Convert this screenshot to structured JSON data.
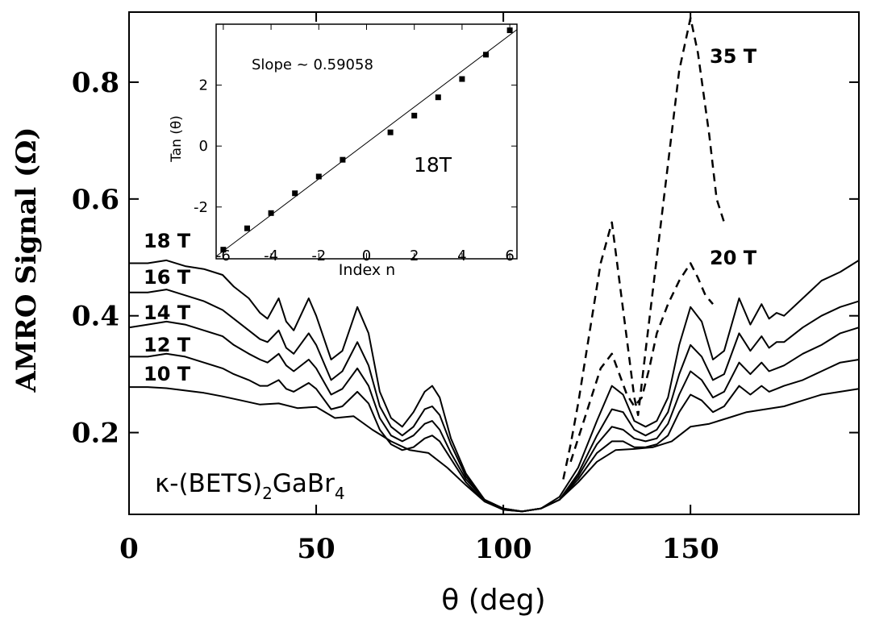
{
  "chart_data": {
    "main": {
      "type": "line",
      "xlabel": "θ (deg)",
      "ylabel": "AMRO Signal (Ω)",
      "xlim": [
        0,
        195
      ],
      "ylim": [
        0.06,
        0.92
      ],
      "xticks": [
        0,
        50,
        100,
        150
      ],
      "xtick_labels": [
        "0",
        "50",
        "100",
        "150"
      ],
      "yticks": [
        0.2,
        0.4,
        0.6,
        0.8
      ],
      "ytick_labels": [
        "0.2",
        "0.4",
        "0.6",
        "0.8"
      ],
      "compound": {
        "prefix": "κ-(BETS)",
        "sub1": "2",
        "mid": "GaBr",
        "sub2": "4"
      },
      "series": [
        {
          "name": "18 T",
          "style": "solid",
          "x": [
            0,
            5,
            10,
            15,
            20,
            25,
            28,
            32,
            35,
            37,
            40,
            42,
            44,
            48,
            50,
            54,
            57,
            61,
            64,
            67,
            70,
            73,
            76,
            79,
            81,
            83,
            86,
            90,
            95,
            100,
            105,
            110,
            115,
            120,
            125,
            129,
            132,
            135,
            138,
            141,
            144,
            147,
            150,
            153,
            156,
            159,
            163,
            166,
            169,
            171,
            173,
            175,
            180,
            185,
            190,
            195
          ],
          "y": [
            0.49,
            0.49,
            0.495,
            0.485,
            0.48,
            0.47,
            0.45,
            0.43,
            0.405,
            0.395,
            0.43,
            0.39,
            0.375,
            0.43,
            0.4,
            0.325,
            0.34,
            0.415,
            0.37,
            0.27,
            0.225,
            0.21,
            0.235,
            0.27,
            0.28,
            0.26,
            0.19,
            0.13,
            0.085,
            0.07,
            0.065,
            0.07,
            0.09,
            0.14,
            0.22,
            0.28,
            0.265,
            0.22,
            0.21,
            0.22,
            0.26,
            0.35,
            0.415,
            0.39,
            0.325,
            0.34,
            0.43,
            0.385,
            0.42,
            0.395,
            0.405,
            0.4,
            0.43,
            0.46,
            0.475,
            0.495
          ]
        },
        {
          "name": "16 T",
          "style": "solid",
          "x": [
            0,
            5,
            10,
            15,
            20,
            25,
            28,
            32,
            35,
            37,
            40,
            42,
            44,
            48,
            50,
            54,
            57,
            61,
            64,
            67,
            70,
            73,
            76,
            79,
            81,
            83,
            86,
            90,
            95,
            100,
            105,
            110,
            115,
            120,
            125,
            129,
            132,
            135,
            138,
            141,
            144,
            147,
            150,
            153,
            156,
            159,
            163,
            166,
            169,
            171,
            173,
            175,
            180,
            185,
            190,
            195
          ],
          "y": [
            0.44,
            0.44,
            0.445,
            0.435,
            0.425,
            0.41,
            0.395,
            0.375,
            0.36,
            0.355,
            0.375,
            0.345,
            0.335,
            0.37,
            0.35,
            0.29,
            0.305,
            0.355,
            0.315,
            0.245,
            0.21,
            0.195,
            0.21,
            0.24,
            0.245,
            0.23,
            0.18,
            0.125,
            0.085,
            0.07,
            0.065,
            0.07,
            0.085,
            0.13,
            0.195,
            0.24,
            0.235,
            0.205,
            0.195,
            0.205,
            0.235,
            0.3,
            0.35,
            0.33,
            0.29,
            0.3,
            0.37,
            0.34,
            0.365,
            0.345,
            0.355,
            0.355,
            0.38,
            0.4,
            0.415,
            0.425
          ]
        },
        {
          "name": "14 T",
          "style": "solid",
          "x": [
            0,
            5,
            10,
            15,
            20,
            25,
            28,
            32,
            35,
            37,
            40,
            42,
            44,
            48,
            50,
            54,
            57,
            61,
            64,
            67,
            70,
            73,
            76,
            79,
            81,
            83,
            86,
            90,
            95,
            100,
            105,
            110,
            115,
            120,
            125,
            129,
            132,
            135,
            138,
            141,
            144,
            147,
            150,
            153,
            156,
            159,
            163,
            166,
            169,
            171,
            173,
            175,
            180,
            185,
            190,
            195
          ],
          "y": [
            0.38,
            0.385,
            0.39,
            0.385,
            0.375,
            0.365,
            0.35,
            0.335,
            0.325,
            0.32,
            0.335,
            0.315,
            0.305,
            0.325,
            0.31,
            0.265,
            0.275,
            0.31,
            0.28,
            0.225,
            0.195,
            0.185,
            0.195,
            0.215,
            0.22,
            0.205,
            0.165,
            0.12,
            0.085,
            0.07,
            0.065,
            0.07,
            0.085,
            0.125,
            0.18,
            0.21,
            0.205,
            0.19,
            0.185,
            0.19,
            0.215,
            0.265,
            0.305,
            0.29,
            0.26,
            0.27,
            0.32,
            0.3,
            0.32,
            0.305,
            0.31,
            0.315,
            0.335,
            0.35,
            0.37,
            0.38
          ]
        },
        {
          "name": "12 T",
          "style": "solid",
          "x": [
            0,
            5,
            10,
            15,
            20,
            25,
            28,
            32,
            35,
            37,
            40,
            42,
            44,
            48,
            50,
            54,
            57,
            61,
            64,
            67,
            70,
            73,
            76,
            79,
            81,
            83,
            86,
            90,
            95,
            100,
            105,
            110,
            115,
            120,
            125,
            129,
            132,
            135,
            138,
            141,
            144,
            147,
            150,
            153,
            156,
            159,
            163,
            166,
            169,
            171,
            173,
            175,
            180,
            185,
            190,
            195
          ],
          "y": [
            0.33,
            0.33,
            0.335,
            0.33,
            0.32,
            0.31,
            0.3,
            0.29,
            0.28,
            0.28,
            0.29,
            0.275,
            0.27,
            0.285,
            0.275,
            0.24,
            0.245,
            0.27,
            0.25,
            0.205,
            0.18,
            0.17,
            0.175,
            0.19,
            0.195,
            0.185,
            0.155,
            0.115,
            0.082,
            0.068,
            0.065,
            0.07,
            0.085,
            0.12,
            0.165,
            0.185,
            0.185,
            0.175,
            0.175,
            0.18,
            0.195,
            0.235,
            0.265,
            0.255,
            0.235,
            0.245,
            0.28,
            0.265,
            0.28,
            0.27,
            0.275,
            0.28,
            0.29,
            0.305,
            0.32,
            0.325
          ]
        },
        {
          "name": "10 T",
          "style": "solid",
          "x": [
            0,
            5,
            10,
            15,
            20,
            25,
            30,
            35,
            40,
            45,
            50,
            55,
            60,
            65,
            70,
            75,
            80,
            85,
            90,
            95,
            100,
            105,
            110,
            115,
            120,
            125,
            130,
            135,
            140,
            145,
            150,
            155,
            160,
            165,
            170,
            175,
            180,
            185,
            190,
            195
          ],
          "y": [
            0.278,
            0.278,
            0.276,
            0.272,
            0.268,
            0.262,
            0.255,
            0.248,
            0.25,
            0.242,
            0.244,
            0.225,
            0.228,
            0.205,
            0.185,
            0.17,
            0.165,
            0.14,
            0.11,
            0.082,
            0.068,
            0.065,
            0.07,
            0.085,
            0.115,
            0.15,
            0.17,
            0.172,
            0.175,
            0.185,
            0.21,
            0.215,
            0.225,
            0.235,
            0.24,
            0.245,
            0.255,
            0.265,
            0.27,
            0.275
          ]
        },
        {
          "name": "35 T",
          "style": "dashed",
          "x": [
            116,
            118,
            120,
            122,
            124,
            126,
            129,
            131,
            133,
            135,
            136,
            138,
            141,
            144,
            147,
            150,
            152,
            155,
            157,
            159
          ],
          "y": [
            0.12,
            0.18,
            0.25,
            0.33,
            0.41,
            0.49,
            0.56,
            0.46,
            0.36,
            0.26,
            0.23,
            0.34,
            0.5,
            0.66,
            0.82,
            0.91,
            0.85,
            0.71,
            0.6,
            0.56
          ]
        },
        {
          "name": "20 T",
          "style": "dashed",
          "x": [
            118,
            121,
            124,
            126,
            129,
            131,
            133,
            135,
            137,
            139,
            141,
            144,
            147,
            150,
            152,
            154,
            156
          ],
          "y": [
            0.15,
            0.21,
            0.27,
            0.31,
            0.335,
            0.3,
            0.265,
            0.245,
            0.26,
            0.31,
            0.37,
            0.42,
            0.46,
            0.49,
            0.465,
            0.435,
            0.42
          ]
        }
      ],
      "annotations": [
        "35 T",
        "20 T"
      ]
    },
    "inset": {
      "type": "scatter",
      "xlabel": "Index n",
      "ylabel": "Tan (θ)",
      "xlim": [
        -6.3,
        6.3
      ],
      "ylim": [
        -3.7,
        4.0
      ],
      "xticks": [
        -6,
        -4,
        -2,
        0,
        2,
        4,
        6
      ],
      "xtick_labels": [
        "-6",
        "-4",
        "-2",
        "0",
        "2",
        "4",
        "6"
      ],
      "yticks": [
        -2,
        0,
        2
      ],
      "ytick_labels": [
        "-2",
        "0",
        "2"
      ],
      "slope_text": "Slope ~ 0.59058",
      "field_label": "18T",
      "points": {
        "x": [
          -6,
          -5,
          -4,
          -3,
          -2,
          -1,
          1,
          2,
          3,
          4,
          5,
          6
        ],
        "y": [
          -3.4,
          -2.7,
          -2.2,
          -1.55,
          -1.0,
          -0.45,
          0.45,
          1.0,
          1.6,
          2.2,
          3.0,
          3.8
        ]
      },
      "fit_line": {
        "slope": 0.59058,
        "intercept": 0.1
      }
    }
  }
}
